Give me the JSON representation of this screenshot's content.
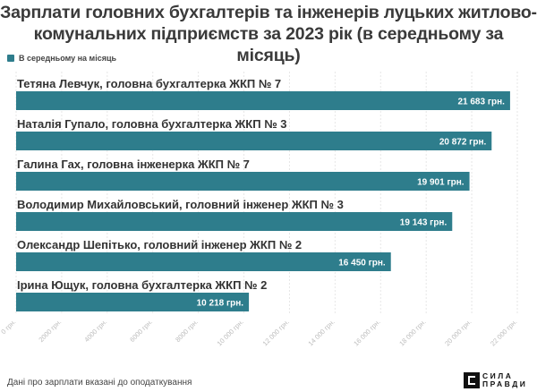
{
  "title_line1": "Зарплати головних бухгалтерів та інженерів луцьких житлово-",
  "title_line2": "комунальних підприємств за 2023 рік (в середньому за місяць)",
  "legend_label": "В середньому на місяць",
  "footnote": "Дані про зарплати вказані до оподаткування",
  "logo": {
    "line1": "СИЛА",
    "line2": "ПРАВДИ"
  },
  "colors": {
    "bar": "#2e7d8c",
    "text": "#333333",
    "value_text": "#ffffff",
    "tick_text": "#bdbdbd"
  },
  "chart_data": {
    "type": "bar",
    "orientation": "horizontal",
    "categories": [
      "Тетяна Левчук, головна бухгалтерка ЖКП № 7",
      "Наталія Гупало, головна бухгалтерка ЖКП № 3",
      "Галина Гах, головна інженерка ЖКП № 7",
      "Володимир Михайловський, головний інженер ЖКП № 3",
      "Олександр Шепітько, головний інженер ЖКП № 2",
      "Ірина Ющук, головна бухгалтерка ЖКП № 2"
    ],
    "series": [
      {
        "name": "В середньому на місяць",
        "values": [
          21683,
          20872,
          19901,
          19143,
          16450,
          10218
        ]
      }
    ],
    "value_labels": [
      "21 683 грн.",
      "20 872 грн.",
      "19 901 грн.",
      "19 143 грн.",
      "16 450 грн.",
      "10 218 грн."
    ],
    "xlim": [
      0,
      22000
    ],
    "xticks": [
      0,
      2000,
      4000,
      6000,
      8000,
      10000,
      12000,
      14000,
      16000,
      18000,
      20000,
      22000
    ],
    "xtick_labels": [
      "0 грн.",
      "2000 грн.",
      "4000 грн.",
      "6000 грн.",
      "8000 грн.",
      "10 000 грн.",
      "12 000 грн.",
      "14 000 грн.",
      "16 000 грн.",
      "18 000 грн.",
      "20 000 грн.",
      "22 000 грн."
    ],
    "grid": true,
    "legend_position": "top-left"
  }
}
